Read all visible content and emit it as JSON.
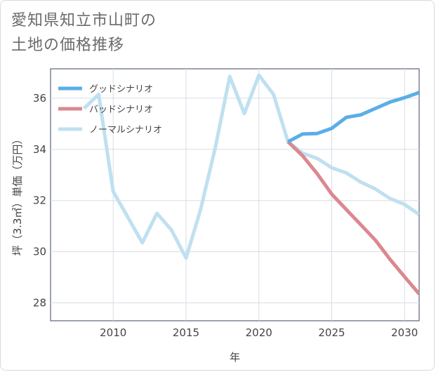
{
  "chart_data": {
    "type": "line",
    "title": "愛知県知立市山町の\n土地の価格推移",
    "xlabel": "年",
    "ylabel": "坪（3.3㎡）単価（万円）",
    "xlim": [
      2005.7,
      2031.0
    ],
    "ylim": [
      27.3,
      37.15
    ],
    "xticks": [
      2010,
      2015,
      2020,
      2025,
      2030
    ],
    "yticks": [
      28,
      30,
      32,
      34,
      36
    ],
    "grid": true,
    "legend_position": "top-left",
    "series": [
      {
        "name": "グッドシナリオ",
        "color": "#5aaee8",
        "x": [
          2022,
          2023,
          2024,
          2025,
          2026,
          2027,
          2028,
          2029,
          2030,
          2031
        ],
        "values": [
          34.3,
          34.6,
          34.62,
          34.82,
          35.25,
          35.35,
          35.6,
          35.85,
          36.02,
          36.22
        ]
      },
      {
        "name": "バッドシナリオ",
        "color": "#db8890",
        "x": [
          2022,
          2023,
          2024,
          2025,
          2026,
          2027,
          2028,
          2029,
          2030,
          2031
        ],
        "values": [
          34.3,
          33.75,
          33.05,
          32.25,
          31.65,
          31.05,
          30.45,
          29.7,
          29.02,
          28.35
        ]
      },
      {
        "name": "ノーマルシナリオ",
        "color": "#bfe0f0",
        "x": [
          2008,
          2009,
          2010,
          2011,
          2012,
          2013,
          2014,
          2015,
          2016,
          2017,
          2018,
          2019,
          2020,
          2021,
          2022,
          2023,
          2024,
          2025,
          2026,
          2027,
          2028,
          2029,
          2030,
          2031
        ],
        "values": [
          35.6,
          36.15,
          32.35,
          31.35,
          30.35,
          31.5,
          30.85,
          29.75,
          31.65,
          34.05,
          36.85,
          35.4,
          36.9,
          36.15,
          34.3,
          33.85,
          33.65,
          33.28,
          33.08,
          32.72,
          32.45,
          32.08,
          31.85,
          31.45
        ]
      }
    ]
  }
}
